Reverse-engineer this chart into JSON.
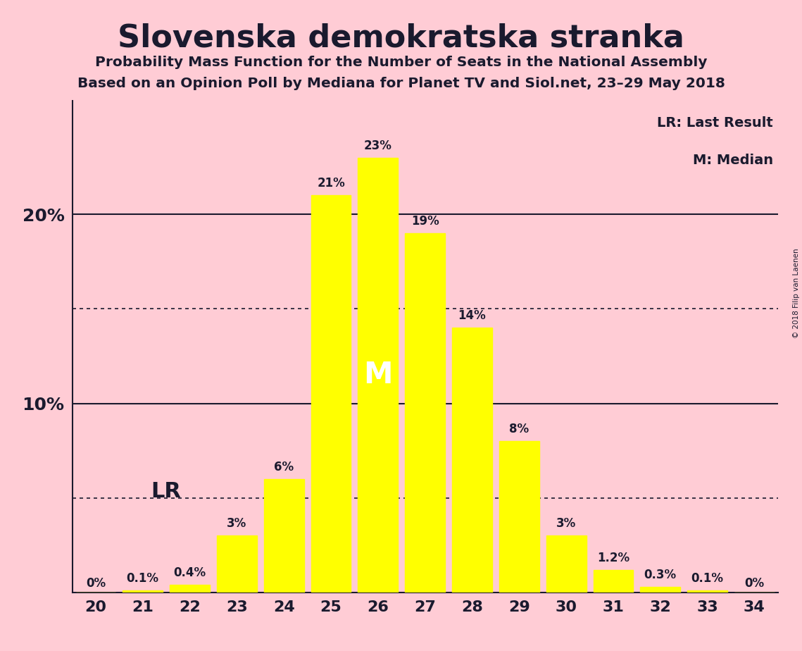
{
  "title": "Slovenska demokratska stranka",
  "subtitle1": "Probability Mass Function for the Number of Seats in the National Assembly",
  "subtitle2": "Based on an Opinion Poll by Mediana for Planet TV and Siol.net, 23–29 May 2018",
  "copyright": "© 2018 Filip van Laenen",
  "categories": [
    20,
    21,
    22,
    23,
    24,
    25,
    26,
    27,
    28,
    29,
    30,
    31,
    32,
    33,
    34
  ],
  "values": [
    0.0,
    0.1,
    0.4,
    3.0,
    6.0,
    21.0,
    23.0,
    19.0,
    14.0,
    8.0,
    3.0,
    1.2,
    0.3,
    0.1,
    0.0
  ],
  "bar_color": "#FFFF00",
  "background_color": "#FFCCD5",
  "text_color": "#1a1a2e",
  "label_texts": [
    "0%",
    "0.1%",
    "0.4%",
    "3%",
    "6%",
    "21%",
    "23%",
    "19%",
    "14%",
    "8%",
    "3%",
    "1.2%",
    "0.3%",
    "0.1%",
    "0%"
  ],
  "median_bar": 26,
  "lr_bar": 22,
  "ylim": [
    0,
    26
  ],
  "yticks": [
    10.0,
    20.0
  ],
  "ytick_labels": [
    "10%",
    "20%"
  ],
  "solid_lines": [
    10.0,
    20.0
  ],
  "dotted_lines": [
    5.0,
    15.0
  ],
  "legend_lr": "LR: Last Result",
  "legend_m": "M: Median",
  "lr_label": "LR",
  "m_label": "M"
}
